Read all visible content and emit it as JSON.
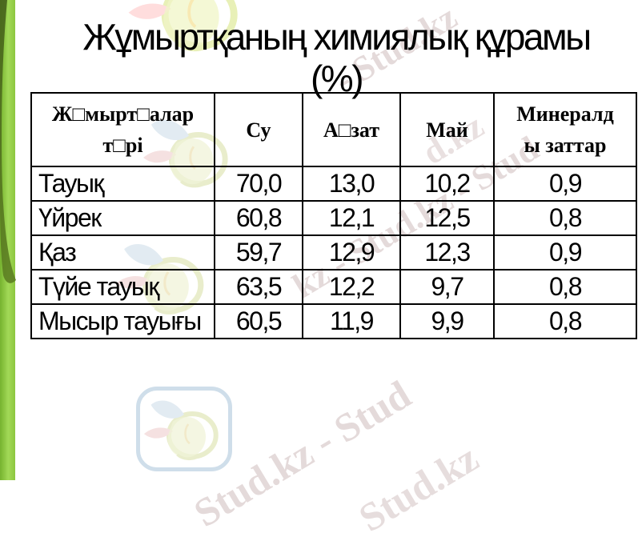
{
  "title": {
    "line1": "Жұмыртқаның химиялық құрамы",
    "line2": "(%)"
  },
  "table": {
    "headers": [
      "Ж□мырт□алар\nт□рі",
      "Су",
      "А□зат",
      "Май",
      "Минералд\nы заттар"
    ],
    "rows": [
      {
        "cells": [
          "Тауық",
          "70,0",
          "13,0",
          "10,2",
          "0,9"
        ]
      },
      {
        "cells": [
          "Үйрек",
          "60,8",
          "12,1",
          "12,5",
          "0,8"
        ]
      },
      {
        "cells": [
          "Қаз",
          "59,7",
          "12,9",
          "12,3",
          "0,9"
        ]
      },
      {
        "cells": [
          "Түйе тауық",
          "63,5",
          "12,2",
          "9,7",
          "0,8"
        ]
      },
      {
        "cells": [
          "Мысыр тауығы",
          "60,5",
          "11,9",
          "9,9",
          "0,8"
        ]
      }
    ]
  },
  "watermarks": {
    "wm1": "- Stud.kz",
    "wm2": "kz - Stud.kz - Stud",
    "wm3": "Stud.kz - Stud",
    "wm4": "Stud.kz",
    "wm5": "d.kz"
  },
  "colors": {
    "accent_green": "#8cc63f",
    "accent_dark_green": "#4e691c",
    "table_border": "#000000",
    "watermark_gray": "#cfbcbc",
    "logo_blue": "#cfdeea"
  },
  "chart_data": {
    "type": "table",
    "title": "Жұмыртқаның химиялық құрамы (%)",
    "units": "%",
    "columns": [
      "Жұмыртқалар түрі",
      "Су",
      "Ақзат",
      "Май",
      "Минералды заттар"
    ],
    "rows": [
      [
        "Тауық",
        70.0,
        13.0,
        10.2,
        0.9
      ],
      [
        "Үйрек",
        60.8,
        12.1,
        12.5,
        0.8
      ],
      [
        "Қаз",
        59.7,
        12.9,
        12.3,
        0.9
      ],
      [
        "Түйе тауық",
        63.5,
        12.2,
        9.7,
        0.8
      ],
      [
        "Мысыр тауығы",
        60.5,
        11.9,
        9.9,
        0.8
      ]
    ]
  }
}
